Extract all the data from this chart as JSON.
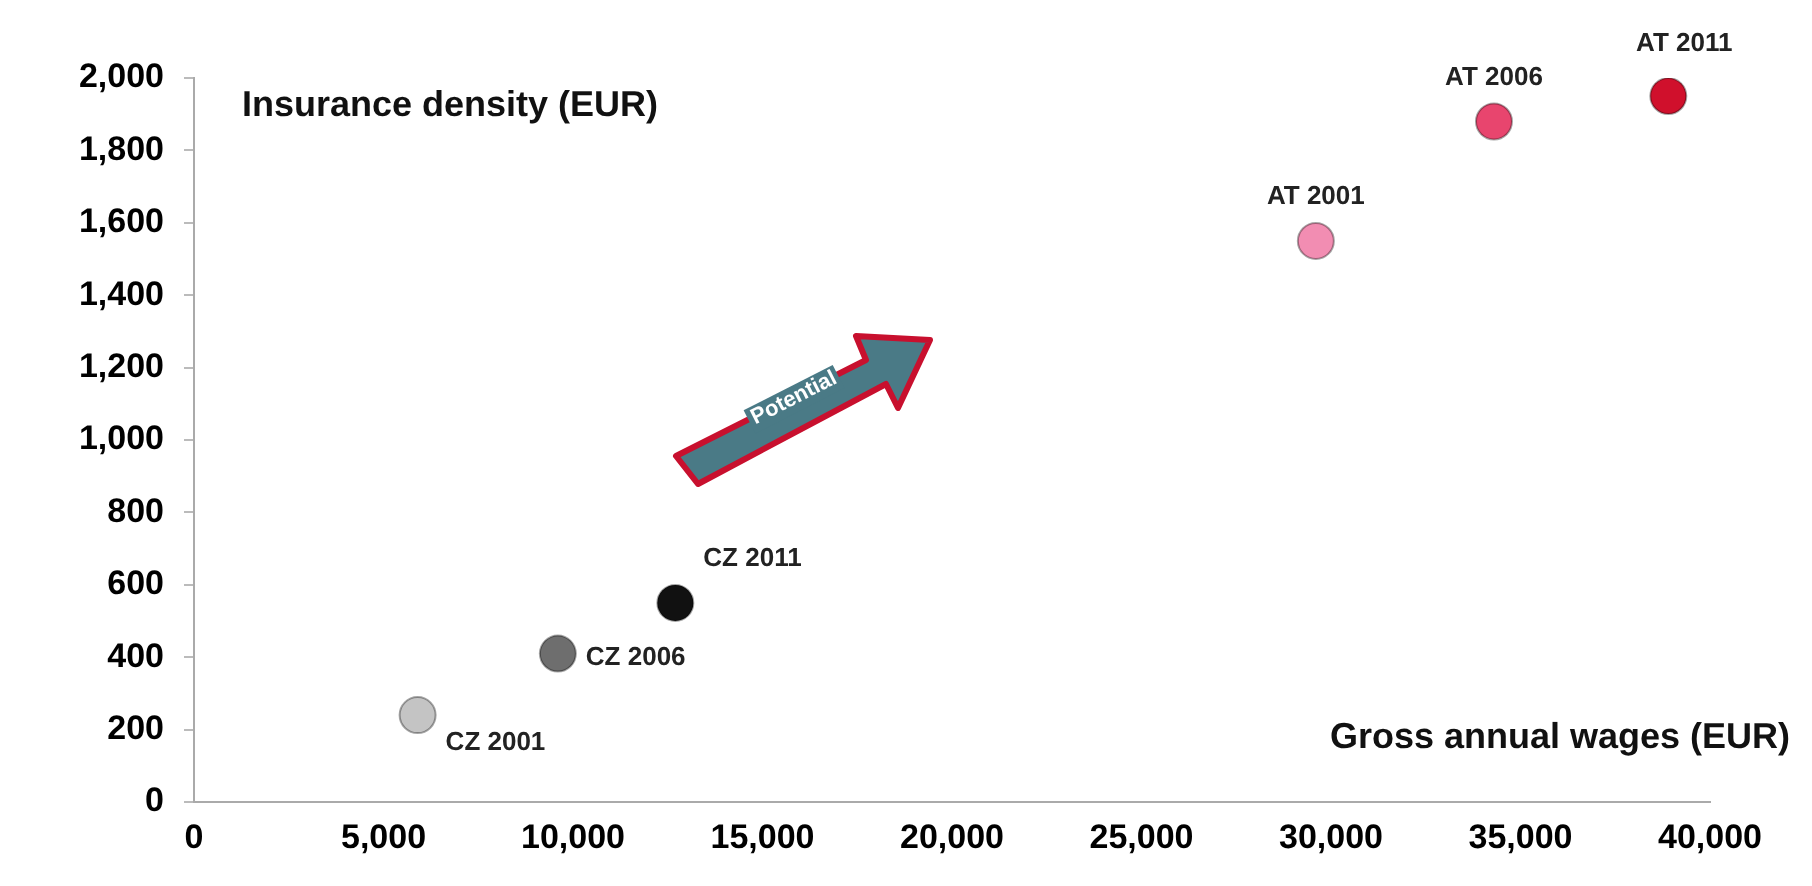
{
  "chart_data": {
    "type": "scatter",
    "xlabel": "Gross annual wages (EUR)",
    "ylabel": "Insurance density (EUR)",
    "series": [
      {
        "name": "CZ 2001",
        "color": "#c4c4c4",
        "x": [
          5900
        ],
        "values": [
          240
        ]
      },
      {
        "name": "CZ 2006",
        "color": "#6e6e6e",
        "x": [
          9600
        ],
        "values": [
          410
        ]
      },
      {
        "name": "CZ 2011",
        "color": "#111111",
        "x": [
          12700
        ],
        "values": [
          550
        ]
      },
      {
        "name": "AT 2001",
        "color": "#f28db2",
        "x": [
          29600
        ],
        "values": [
          1550
        ]
      },
      {
        "name": "AT 2006",
        "color": "#e8456e",
        "x": [
          34300
        ],
        "values": [
          1880
        ]
      },
      {
        "name": "AT 2011",
        "color": "#d0102c",
        "x": [
          38900
        ],
        "values": [
          1950
        ]
      }
    ],
    "xlim": [
      0,
      40000
    ],
    "xticks": [
      0,
      {
        "value": 5000,
        "label": "5,000"
      },
      {
        "value": 10000,
        "label": "10,000"
      },
      {
        "value": 15000,
        "label": "15,000"
      },
      {
        "value": 20000,
        "label": "20,000"
      },
      {
        "value": 25000,
        "label": "25,000"
      },
      {
        "value": 30000,
        "label": "30,000"
      },
      {
        "value": 35000,
        "label": "35,000"
      },
      {
        "value": 40000,
        "label": "40,000"
      }
    ],
    "ylim": [
      0,
      2000
    ],
    "yticks": [
      0,
      200,
      400,
      600,
      800,
      {
        "value": 1000,
        "label": "1,000"
      },
      {
        "value": 1200,
        "label": "1,200"
      },
      {
        "value": 1400,
        "label": "1,400"
      },
      {
        "value": 1600,
        "label": "1,600"
      },
      {
        "value": 1800,
        "label": "1,800"
      },
      {
        "value": 2000,
        "label": "2,000"
      }
    ],
    "grid": false,
    "legend": false,
    "marker": "circle",
    "annotations": [
      "Potential"
    ]
  }
}
